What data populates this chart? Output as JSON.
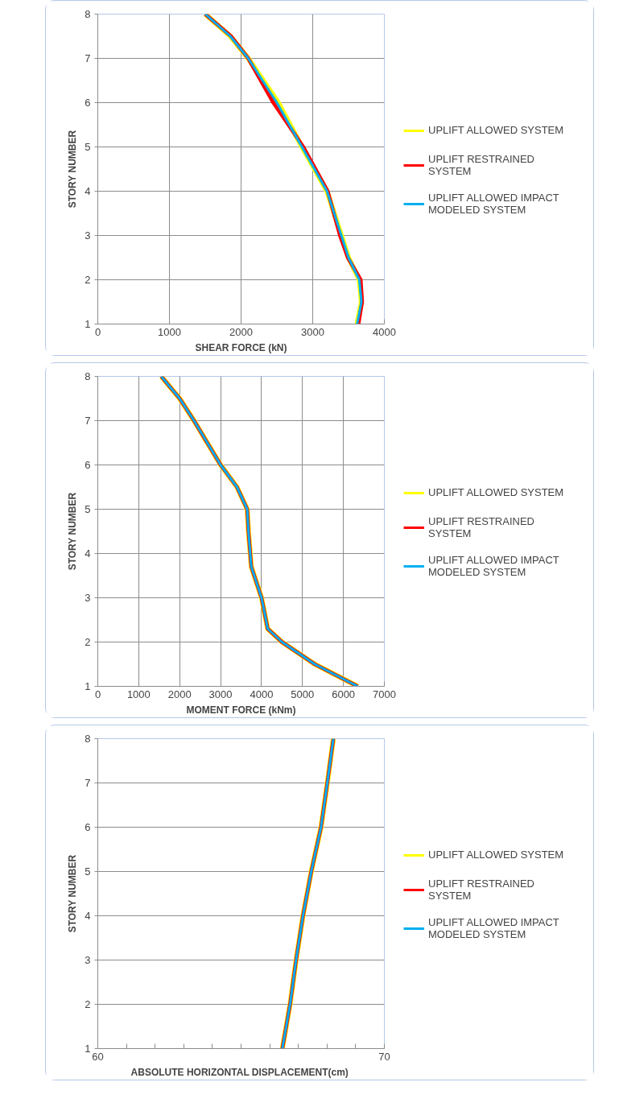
{
  "chart_data": [
    {
      "type": "line",
      "xlabel": "SHEAR FORCE (kN)",
      "ylabel": "STORY NUMBER",
      "xlim": [
        0,
        4000
      ],
      "xticks": [
        0,
        1000,
        2000,
        3000,
        4000
      ],
      "ylim": [
        1,
        8
      ],
      "yticks": [
        1,
        2,
        3,
        4,
        5,
        6,
        7,
        8
      ],
      "grid": true,
      "legend": "right",
      "marker": "none",
      "line_style": "solid",
      "series": [
        {
          "name": "UPLIFT ALLOWED SYSTEM",
          "color": "#ffff00",
          "x": [
            3620,
            3680,
            3650,
            3500,
            3400,
            3200,
            2850,
            2520,
            2100,
            1850,
            1500
          ],
          "values": [
            1,
            1.5,
            2,
            2.5,
            3,
            4,
            5,
            6,
            7,
            7.5,
            8
          ]
        },
        {
          "name": "UPLIFT RESTRAINED SYSTEM",
          "color": "#ff0000",
          "x": [
            3640,
            3690,
            3670,
            3490,
            3380,
            3210,
            2870,
            2450,
            2100,
            1860,
            1500
          ],
          "values": [
            1,
            1.5,
            2,
            2.5,
            3,
            4,
            5,
            6,
            7,
            7.5,
            8
          ]
        },
        {
          "name": "UPLIFT ALLOWED IMPACT MODELED SYSTEM",
          "color": "#00b0f0",
          "x": [
            3620,
            3680,
            3650,
            3500,
            3400,
            3200,
            2850,
            2500,
            2100,
            1850,
            1500
          ],
          "values": [
            1,
            1.5,
            2,
            2.5,
            3,
            4,
            5,
            6,
            7,
            7.5,
            8
          ]
        }
      ]
    },
    {
      "type": "line",
      "xlabel": "MOMENT FORCE (kNm)",
      "ylabel": "STORY NUMBER",
      "xlim": [
        0,
        7000
      ],
      "xticks": [
        0,
        1000,
        2000,
        3000,
        4000,
        5000,
        6000,
        7000
      ],
      "ylim": [
        1,
        8
      ],
      "yticks": [
        1,
        2,
        3,
        4,
        5,
        6,
        7,
        8
      ],
      "grid": true,
      "legend": "right",
      "marker": "none",
      "line_style": "solid",
      "series": [
        {
          "name": "UPLIFT ALLOWED SYSTEM",
          "color": "#ffff00",
          "x": [
            6350,
            5300,
            4500,
            4150,
            4000,
            3750,
            3680,
            3650,
            3400,
            3000,
            2350,
            2000,
            1550
          ],
          "values": [
            1,
            1.5,
            2,
            2.3,
            3,
            3.7,
            4.5,
            5,
            5.5,
            6,
            7,
            7.5,
            8
          ]
        },
        {
          "name": "UPLIFT RESTRAINED SYSTEM",
          "color": "#ff0000",
          "x": [
            6350,
            5300,
            4500,
            4150,
            4000,
            3750,
            3680,
            3650,
            3400,
            3000,
            2350,
            2000,
            1550
          ],
          "values": [
            1,
            1.5,
            2,
            2.3,
            3,
            3.7,
            4.5,
            5,
            5.5,
            6,
            7,
            7.5,
            8
          ]
        },
        {
          "name": "UPLIFT ALLOWED IMPACT MODELED SYSTEM",
          "color": "#00b0f0",
          "x": [
            6350,
            5300,
            4500,
            4150,
            4000,
            3750,
            3680,
            3650,
            3400,
            3000,
            2350,
            2000,
            1550
          ],
          "values": [
            1,
            1.5,
            2,
            2.3,
            3,
            3.7,
            4.5,
            5,
            5.5,
            6,
            7,
            7.5,
            8
          ]
        }
      ]
    },
    {
      "type": "line",
      "xlabel": "ABSOLUTE HORIZONTAL  DISPLACEMENT(cm)",
      "ylabel": "STORY NUMBER",
      "xlim": [
        60,
        70
      ],
      "xticks": [
        60,
        {
          "value": 61,
          "label": null
        },
        {
          "value": 62,
          "label": null
        },
        {
          "value": 63,
          "label": null
        },
        {
          "value": 64,
          "label": null
        },
        {
          "value": 65,
          "label": null
        },
        {
          "value": 66,
          "label": null
        },
        {
          "value": 67,
          "label": null
        },
        {
          "value": 68,
          "label": null
        },
        {
          "value": 69,
          "label": null
        },
        70
      ],
      "ylim": [
        1,
        8
      ],
      "yticks": [
        1,
        2,
        3,
        4,
        5,
        6,
        7,
        8
      ],
      "grid": "y",
      "legend": "right",
      "marker": "none",
      "line_style": "solid",
      "series": [
        {
          "name": "UPLIFT ALLOWED SYSTEM",
          "color": "#ffff00",
          "x": [
            66.44,
            66.71,
            66.92,
            67.16,
            67.45,
            67.79,
            68.01,
            68.22
          ],
          "values": [
            1,
            2,
            3,
            4,
            5,
            6,
            7,
            8
          ]
        },
        {
          "name": "UPLIFT RESTRAINED SYSTEM",
          "color": "#ff0000",
          "x": [
            66.44,
            66.71,
            66.92,
            67.16,
            67.45,
            67.79,
            68.01,
            68.22
          ],
          "values": [
            1,
            2,
            3,
            4,
            5,
            6,
            7,
            8
          ]
        },
        {
          "name": "UPLIFT ALLOWED IMPACT MODELED SYSTEM",
          "color": "#00b0f0",
          "x": [
            66.44,
            66.71,
            66.92,
            67.16,
            67.45,
            67.79,
            68.01,
            68.22
          ],
          "values": [
            1,
            2,
            3,
            4,
            5,
            6,
            7,
            8
          ]
        }
      ]
    }
  ]
}
